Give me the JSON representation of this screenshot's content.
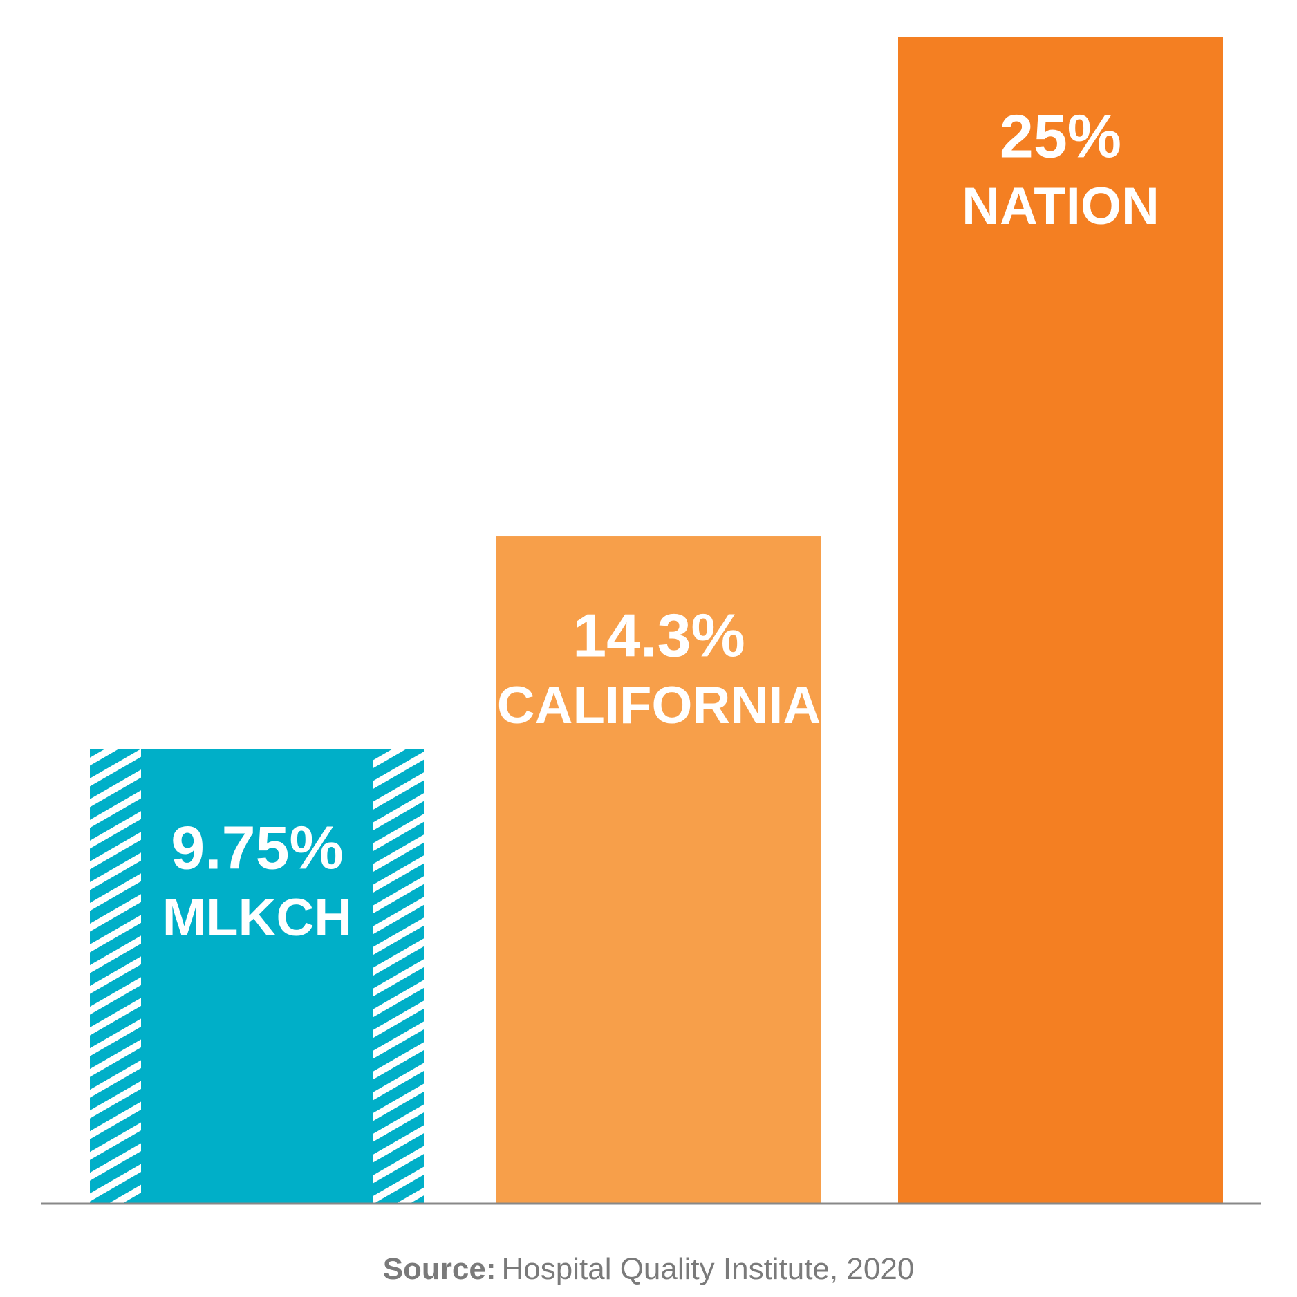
{
  "chart_data": {
    "type": "bar",
    "categories": [
      "MLKCH",
      "CALIFORNIA",
      "NATION"
    ],
    "values": [
      9.75,
      14.3,
      25
    ],
    "value_labels": [
      "9.75%",
      "14.3%",
      "25%"
    ],
    "colors": [
      "#00afc8",
      "#f79f4a",
      "#f47f22"
    ],
    "hatched": [
      true,
      false,
      false
    ],
    "ylim": [
      0,
      25
    ],
    "source_label": "Source:",
    "source": "Hospital Quality Institute, 2020"
  }
}
